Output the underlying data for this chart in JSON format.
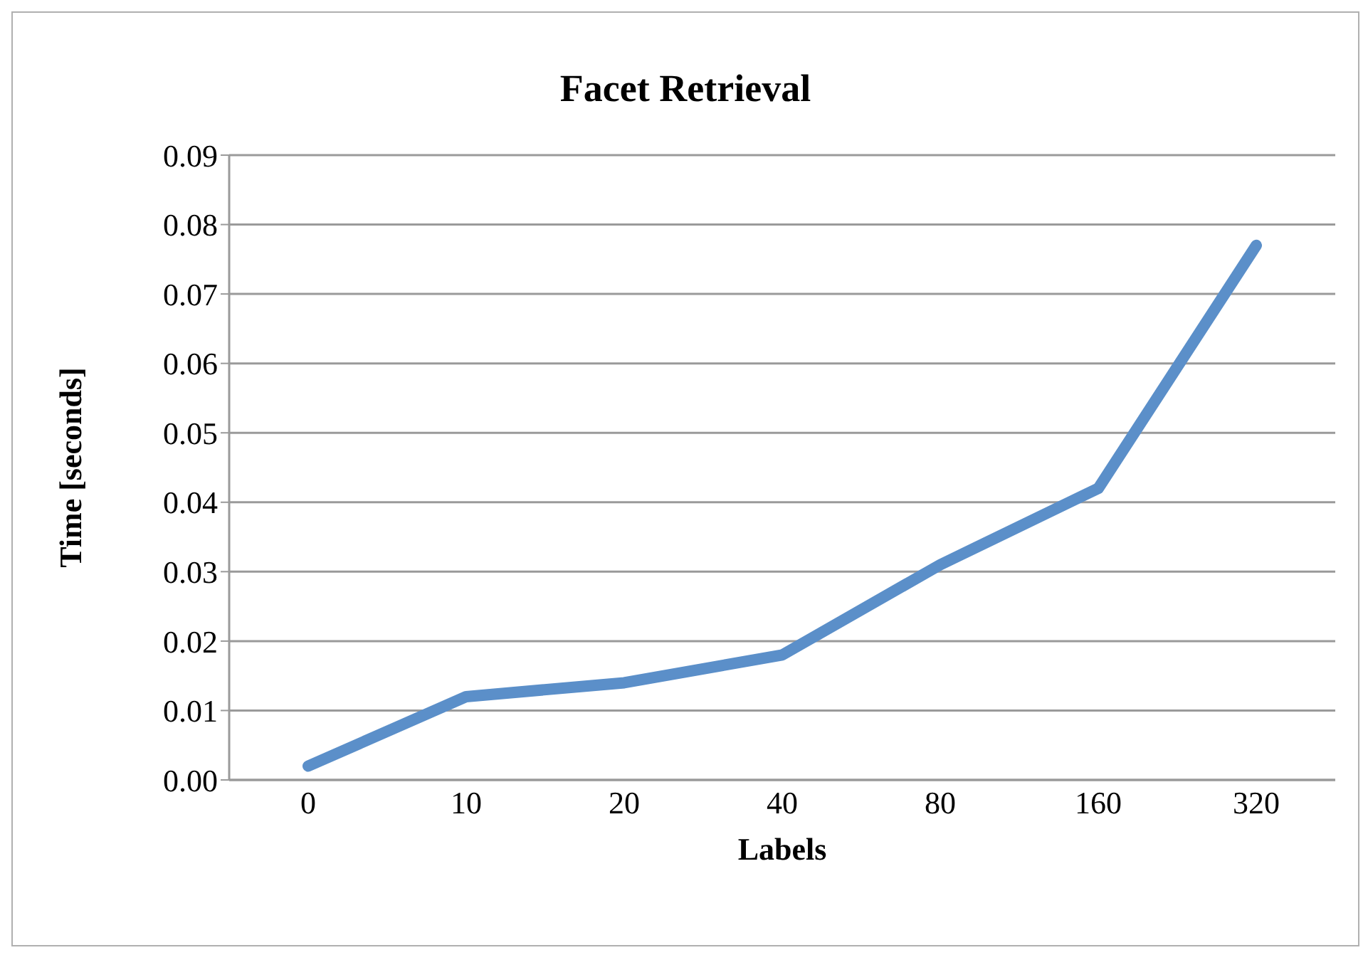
{
  "chart_data": {
    "type": "line",
    "title": "Facet Retrieval",
    "xlabel": "Labels",
    "ylabel": "Time [seconds]",
    "categories": [
      "0",
      "10",
      "20",
      "40",
      "80",
      "160",
      "320"
    ],
    "series": [
      {
        "color": "#5b8fc9",
        "values": [
          0.002,
          0.012,
          0.014,
          0.018,
          0.031,
          0.042,
          0.077
        ]
      }
    ],
    "ylim": [
      0,
      0.09
    ],
    "yticks": [
      {
        "value": 0,
        "label": "0.00"
      },
      {
        "value": 0.01,
        "label": "0.01"
      },
      {
        "value": 0.02,
        "label": "0.02"
      },
      {
        "value": 0.03,
        "label": "0.03"
      },
      {
        "value": 0.04,
        "label": "0.04"
      },
      {
        "value": 0.05,
        "label": "0.05"
      },
      {
        "value": 0.06,
        "label": "0.06"
      },
      {
        "value": 0.07,
        "label": "0.07"
      },
      {
        "value": 0.08,
        "label": "0.08"
      },
      {
        "value": 0.09,
        "label": "0.09"
      }
    ],
    "grid": "y",
    "legend": false,
    "marker": "none",
    "line_style": "solid"
  }
}
